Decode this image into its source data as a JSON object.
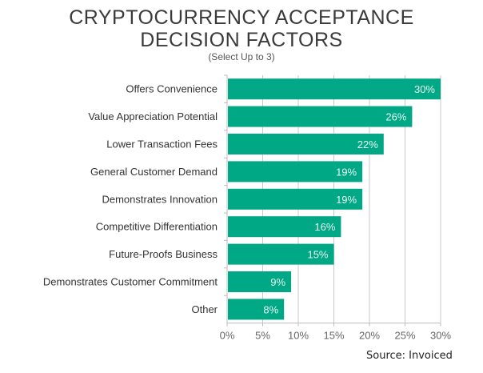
{
  "chart_data": {
    "type": "bar",
    "orientation": "horizontal",
    "title_lines": [
      "CRYPTOCURRENCY ACCEPTANCE",
      "DECISION FACTORS"
    ],
    "subtitle": "(Select Up to 3)",
    "categories": [
      "Offers Convenience",
      "Value Appreciation Potential",
      "Lower Transaction Fees",
      "General Customer Demand",
      "Demonstrates Innovation",
      "Competitive Differentiation",
      "Future-Proofs Business",
      "Demonstrates Customer Commitment",
      "Other"
    ],
    "values": [
      30,
      26,
      22,
      19,
      19,
      16,
      15,
      9,
      8
    ],
    "data_labels": [
      "30%",
      "26%",
      "22%",
      "19%",
      "19%",
      "16%",
      "15%",
      "9%",
      "8%"
    ],
    "xlim": [
      0,
      30
    ],
    "xticks": [
      0,
      5,
      10,
      15,
      20,
      25,
      30
    ],
    "xtick_labels": [
      "0%",
      "5%",
      "10%",
      "15%",
      "20%",
      "25%",
      "30%"
    ],
    "grid": true,
    "bar_color": "#00a886",
    "source": "Source: Invoiced"
  }
}
